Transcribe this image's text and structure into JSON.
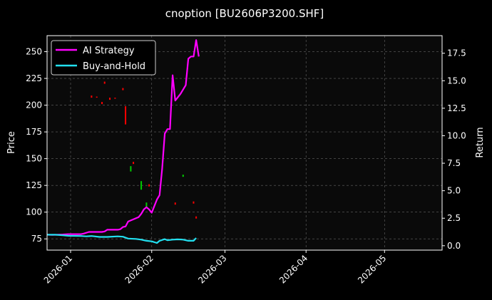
{
  "chart_data": {
    "type": "line",
    "title": "cnoption [BU2606P3200.SHF]",
    "ylabel_left": "Price",
    "ylabel_right": "Return",
    "x_range": [
      "2025-12-23",
      "2026-05-23"
    ],
    "ylim_left": [
      64.5,
      265
    ],
    "ylim_right": [
      -0.4,
      19.1
    ],
    "x_ticks": [
      "2026-01-01",
      "2026-02-01",
      "2026-03-01",
      "2026-04-01",
      "2026-05-01"
    ],
    "x_tick_labels": [
      "2026-01",
      "2026-02",
      "2026-03",
      "2026-04",
      "2026-05"
    ],
    "y_left_ticks": [
      75,
      100,
      125,
      150,
      175,
      200,
      225,
      250
    ],
    "y_right_ticks": [
      "0.0",
      "2.5",
      "5.0",
      "7.5",
      "10.0",
      "12.5",
      "15.0",
      "17.5"
    ],
    "grid": true,
    "legend_position": "top-left",
    "series": [
      {
        "name": "AI Strategy",
        "axis": "right",
        "color": "#ff00ff",
        "points": [
          [
            "2025-12-23",
            1.0
          ],
          [
            "2025-12-25",
            0.98
          ],
          [
            "2025-12-27",
            1.0
          ],
          [
            "2025-12-29",
            1.02
          ],
          [
            "2025-12-31",
            1.05
          ],
          [
            "2026-01-02",
            1.05
          ],
          [
            "2026-01-05",
            1.05
          ],
          [
            "2026-01-06",
            1.1
          ],
          [
            "2026-01-08",
            1.25
          ],
          [
            "2026-01-09",
            1.25
          ],
          [
            "2026-01-13",
            1.25
          ],
          [
            "2026-01-14",
            1.3
          ],
          [
            "2026-01-15",
            1.45
          ],
          [
            "2026-01-19",
            1.45
          ],
          [
            "2026-01-20",
            1.5
          ],
          [
            "2026-01-21",
            1.7
          ],
          [
            "2026-01-22",
            1.75
          ],
          [
            "2026-01-23",
            2.2
          ],
          [
            "2026-01-26",
            2.5
          ],
          [
            "2026-01-27",
            2.6
          ],
          [
            "2026-01-28",
            2.9
          ],
          [
            "2026-01-29",
            3.3
          ],
          [
            "2026-01-30",
            3.5
          ],
          [
            "2026-01-31",
            3.3
          ],
          [
            "2026-02-01",
            3.0
          ],
          [
            "2026-02-02",
            3.6
          ],
          [
            "2026-02-03",
            4.2
          ],
          [
            "2026-02-04",
            4.6
          ],
          [
            "2026-02-05",
            7.0
          ],
          [
            "2026-02-06",
            10.2
          ],
          [
            "2026-02-07",
            10.6
          ],
          [
            "2026-02-08",
            10.6
          ],
          [
            "2026-02-09",
            15.5
          ],
          [
            "2026-02-10",
            13.2
          ],
          [
            "2026-02-12",
            13.8
          ],
          [
            "2026-02-14",
            14.6
          ],
          [
            "2026-02-15",
            17.0
          ],
          [
            "2026-02-16",
            17.2
          ],
          [
            "2026-02-17",
            17.2
          ],
          [
            "2026-02-18",
            18.7
          ],
          [
            "2026-02-19",
            17.2
          ]
        ]
      },
      {
        "name": "Buy-and-Hold",
        "axis": "right",
        "color": "#22e0f0",
        "points": [
          [
            "2025-12-23",
            1.0
          ],
          [
            "2025-12-26",
            1.0
          ],
          [
            "2025-12-29",
            0.95
          ],
          [
            "2025-12-31",
            0.9
          ],
          [
            "2026-01-05",
            0.88
          ],
          [
            "2026-01-07",
            0.85
          ],
          [
            "2026-01-09",
            0.88
          ],
          [
            "2026-01-12",
            0.8
          ],
          [
            "2026-01-15",
            0.8
          ],
          [
            "2026-01-19",
            0.85
          ],
          [
            "2026-01-21",
            0.82
          ],
          [
            "2026-01-23",
            0.65
          ],
          [
            "2026-01-26",
            0.62
          ],
          [
            "2026-01-28",
            0.55
          ],
          [
            "2026-01-30",
            0.45
          ],
          [
            "2026-02-01",
            0.4
          ],
          [
            "2026-02-03",
            0.25
          ],
          [
            "2026-02-04",
            0.45
          ],
          [
            "2026-02-06",
            0.6
          ],
          [
            "2026-02-07",
            0.5
          ],
          [
            "2026-02-09",
            0.55
          ],
          [
            "2026-02-11",
            0.58
          ],
          [
            "2026-02-13",
            0.55
          ],
          [
            "2026-02-15",
            0.45
          ],
          [
            "2026-02-17",
            0.45
          ],
          [
            "2026-02-18",
            0.7
          ]
        ]
      }
    ],
    "candles_left_axis": [
      {
        "date": "2026-01-09",
        "low": 207,
        "high": 209,
        "color": "#ff0000"
      },
      {
        "date": "2026-01-11",
        "low": 207,
        "high": 208,
        "color": "#ff0000"
      },
      {
        "date": "2026-01-13",
        "low": 201,
        "high": 203,
        "color": "#ff0000"
      },
      {
        "date": "2026-01-14",
        "low": 220,
        "high": 222,
        "color": "#ff0000"
      },
      {
        "date": "2026-01-16",
        "low": 205,
        "high": 207,
        "color": "#ff0000"
      },
      {
        "date": "2026-01-18",
        "low": 206,
        "high": 207,
        "color": "#ff0000"
      },
      {
        "date": "2026-01-21",
        "low": 214,
        "high": 216,
        "color": "#ff0000"
      },
      {
        "date": "2026-01-22",
        "low": 182,
        "high": 199,
        "color": "#ff0000"
      },
      {
        "date": "2026-01-24",
        "low": 138,
        "high": 143,
        "color": "#00cc00"
      },
      {
        "date": "2026-01-25",
        "low": 145,
        "high": 147,
        "color": "#ff0000"
      },
      {
        "date": "2026-01-28",
        "low": 121,
        "high": 129,
        "color": "#00cc00"
      },
      {
        "date": "2026-01-30",
        "low": 104,
        "high": 109,
        "color": "#00cc00"
      },
      {
        "date": "2026-01-31",
        "low": 124,
        "high": 126,
        "color": "#ff0000"
      },
      {
        "date": "2026-02-10",
        "low": 107,
        "high": 109,
        "color": "#ff0000"
      },
      {
        "date": "2026-02-13",
        "low": 133,
        "high": 135,
        "color": "#00cc00"
      },
      {
        "date": "2026-02-17",
        "low": 108,
        "high": 110,
        "color": "#ff0000"
      },
      {
        "date": "2026-02-18",
        "low": 94,
        "high": 96,
        "color": "#ff0000"
      }
    ]
  }
}
